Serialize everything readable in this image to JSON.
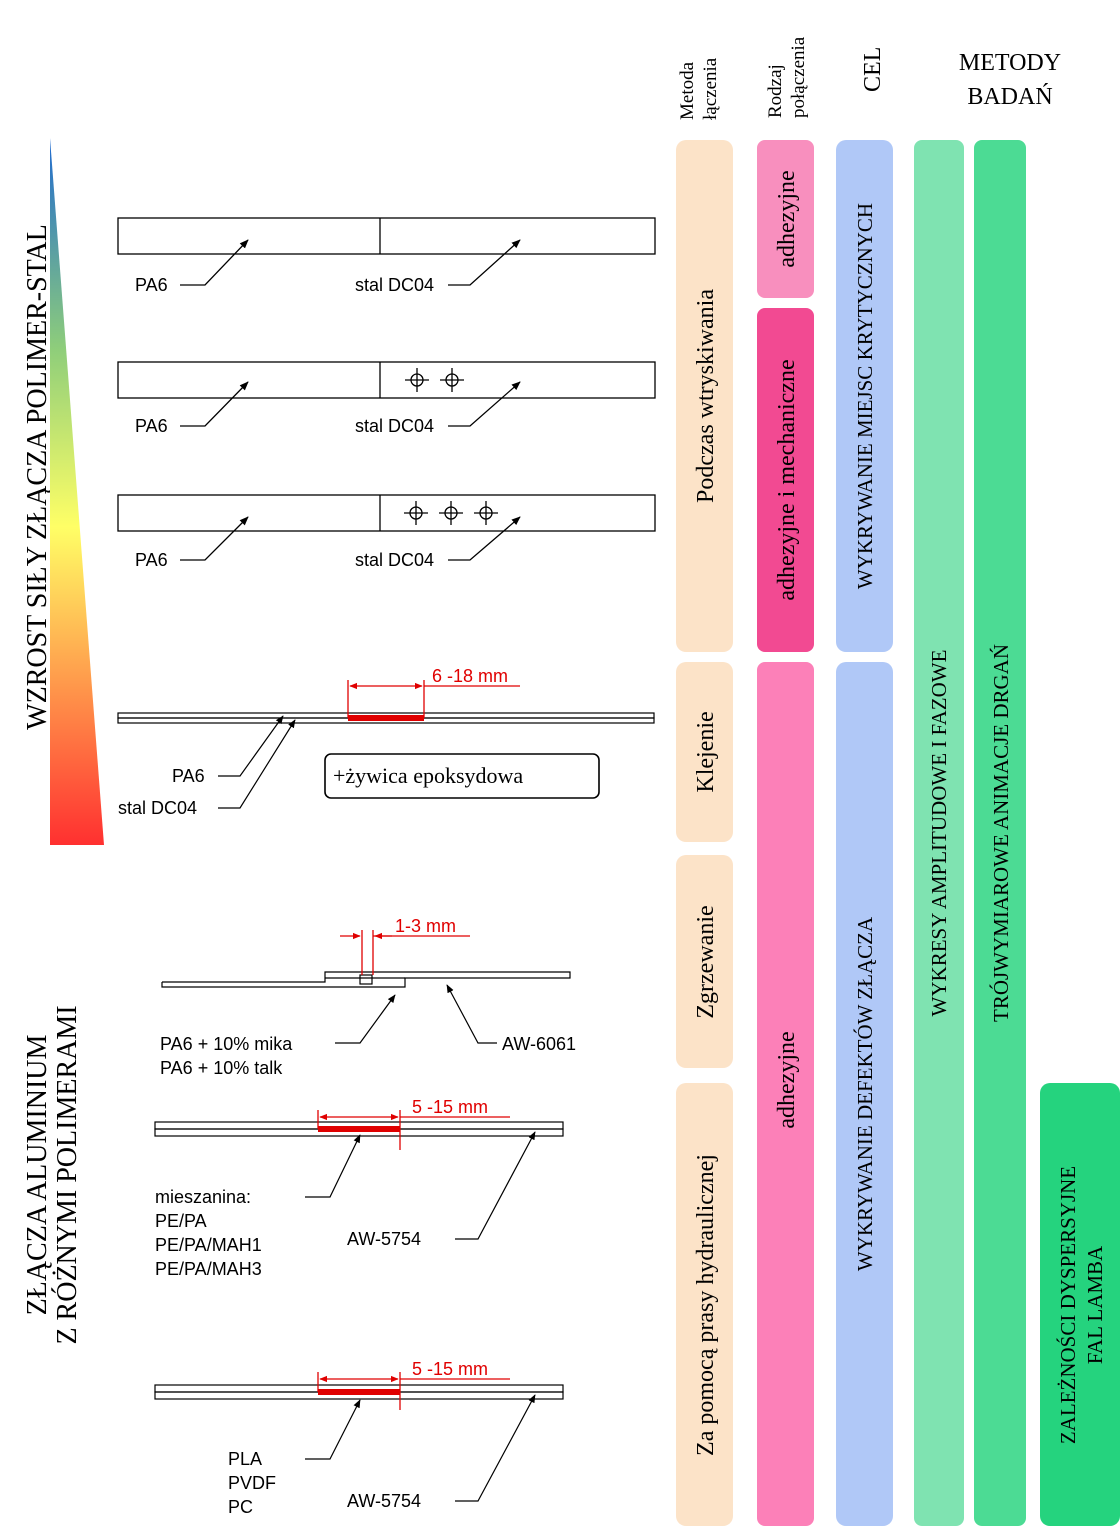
{
  "columns": {
    "metoda": [
      "Metoda",
      "łączenia"
    ],
    "rodzaj": [
      "Rodzaj",
      "połączenia"
    ],
    "cel": "CEL",
    "metody": [
      "METODY",
      "BADAŃ"
    ]
  },
  "left_labels": {
    "wzrost": "WZROST SIŁY ZŁĄCZA POLIMER-STAL",
    "zlacza": [
      "ZŁĄCZA ALUMINIUM",
      "Z RÓŻNYMI POLIMERAMI"
    ]
  },
  "bars": {
    "metoda": [
      "Podczas wtryskiwania",
      "Klejenie",
      "Zgrzewanie",
      "Za pomocą prasy hydraulicznej"
    ],
    "rodzaj": [
      "adhezyjne",
      "adhezyjne i mechaniczne",
      "adhezyjne"
    ],
    "cel": [
      "WYKRYWANIE MIEJSC KRYTYCZNYCH",
      "WYKRYWANIE DEFEKTÓW ZŁĄCZA"
    ],
    "metody": [
      "WYKRESY AMPLITUDOWE I FAZOWE",
      "TRÓJWYMIAROWE ANIMACJE DRGAŃ",
      [
        "ZALEŻNOŚCI DYSPERSYJNE",
        "FAL LAMBA"
      ]
    ]
  },
  "colors": {
    "metoda": "#fce3c8",
    "adhezyjne_top": "#f88fbe",
    "adh_mech": "#f24a92",
    "adhezyjne_bottom": "#fc80b8",
    "cel": "#b0c8f7",
    "metody1": "#7fe3b1",
    "metody2": "#4cdb94",
    "metody3": "#25d37e"
  },
  "specimens": {
    "s1": {
      "left": "PA6",
      "right": "stal DC04"
    },
    "s2": {
      "left": "PA6",
      "right": "stal DC04"
    },
    "s3": {
      "left": "PA6",
      "right": "stal DC04"
    },
    "s4": {
      "dim": "6 -18 mm",
      "l1": "PA6",
      "l2": "stal DC04",
      "box": "+żywica epoksydowa"
    },
    "s5": {
      "dim": "1-3 mm",
      "left": [
        "PA6 + 10% mika",
        "PA6 + 10% talk"
      ],
      "right": "AW-6061"
    },
    "s6": {
      "dim": "5 -15 mm",
      "left": [
        "mieszanina:",
        "PE/PA",
        "PE/PA/MAH1",
        "PE/PA/MAH3"
      ],
      "right": "AW-5754"
    },
    "s7": {
      "dim": "5 -15 mm",
      "left": [
        "PLA",
        "PVDF",
        "PC"
      ],
      "right": "AW-5754"
    }
  }
}
